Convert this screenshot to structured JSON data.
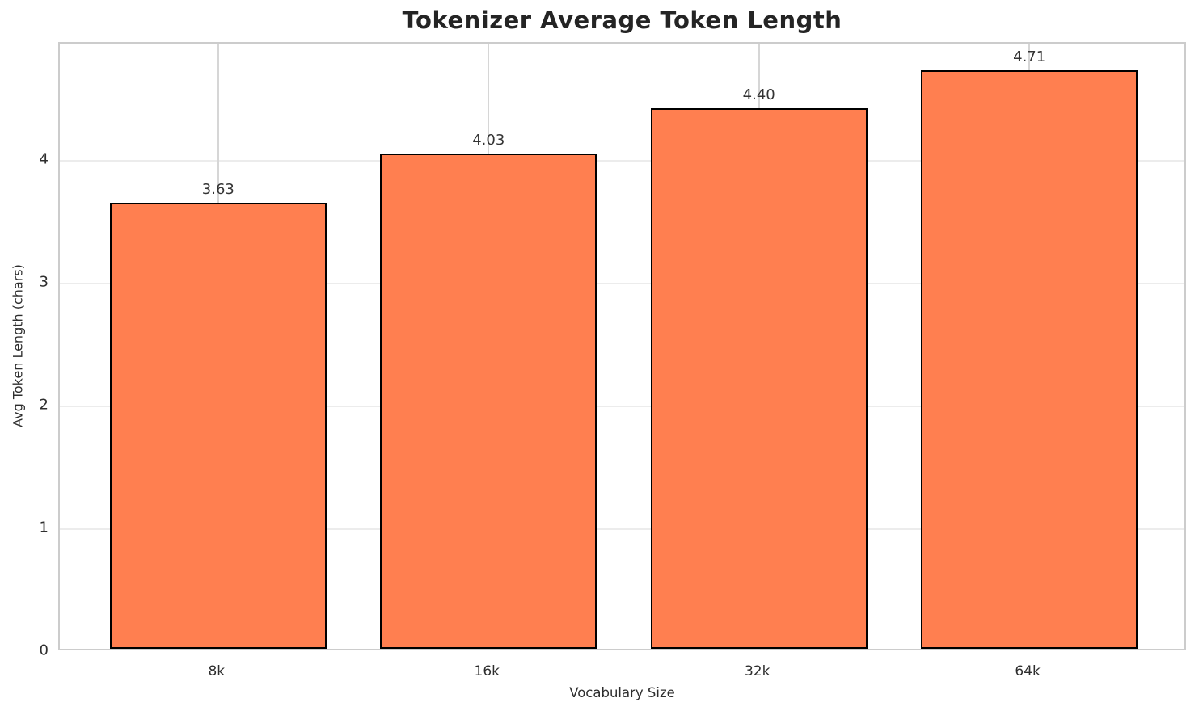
{
  "chart_data": {
    "type": "bar",
    "title": "Tokenizer Average Token Length",
    "xlabel": "Vocabulary Size",
    "ylabel": "Avg Token Length (chars)",
    "categories": [
      "8k",
      "16k",
      "32k",
      "64k"
    ],
    "values": [
      3.63,
      4.03,
      4.4,
      4.71
    ],
    "value_labels": [
      "3.63",
      "4.03",
      "4.40",
      "4.71"
    ],
    "yticks": [
      0,
      1,
      2,
      3,
      4
    ],
    "ylim": [
      0,
      4.95
    ],
    "grid": true,
    "legend": "none",
    "colors": {
      "bar_fill": "#FF7F50",
      "bar_edge": "#000000",
      "hgrid": "#ececec",
      "vgrid": "#d6d6d6",
      "spine": "#cccccc",
      "title_text": "#242424",
      "tick_text": "#2e2e2e",
      "label_text": "#2e2e2e",
      "value_text": "#343434",
      "background": "#ffffff"
    }
  }
}
